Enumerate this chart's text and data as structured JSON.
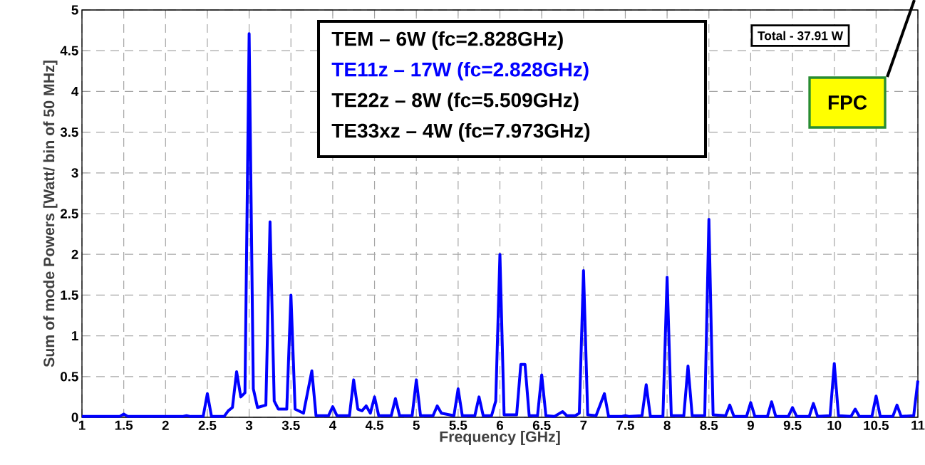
{
  "chart_data": {
    "type": "line",
    "xlabel": "Frequency [GHz]",
    "ylabel": "Sum of mode Powers [Watt/ bin of 50 MHz]",
    "x": [
      1,
      1.45,
      1.5,
      1.55,
      1.75,
      2.0,
      2.2,
      2.25,
      2.3,
      2.45,
      2.5,
      2.55,
      2.7,
      2.75,
      2.8,
      2.85,
      2.9,
      2.95,
      3.0,
      3.05,
      3.1,
      3.2,
      3.25,
      3.3,
      3.35,
      3.45,
      3.5,
      3.55,
      3.65,
      3.75,
      3.8,
      3.95,
      4.0,
      4.05,
      4.2,
      4.25,
      4.3,
      4.35,
      4.4,
      4.45,
      4.5,
      4.55,
      4.7,
      4.75,
      4.8,
      4.95,
      5.0,
      5.05,
      5.2,
      5.25,
      5.3,
      5.45,
      5.5,
      5.55,
      5.7,
      5.75,
      5.8,
      5.9,
      5.95,
      6.0,
      6.05,
      6.2,
      6.25,
      6.3,
      6.35,
      6.45,
      6.5,
      6.55,
      6.65,
      6.75,
      6.8,
      6.9,
      6.95,
      7.0,
      7.05,
      7.15,
      7.25,
      7.3,
      7.45,
      7.5,
      7.55,
      7.7,
      7.75,
      7.8,
      7.95,
      8.0,
      8.05,
      8.2,
      8.25,
      8.3,
      8.45,
      8.5,
      8.55,
      8.7,
      8.75,
      8.8,
      8.95,
      9.0,
      9.05,
      9.2,
      9.25,
      9.3,
      9.45,
      9.5,
      9.55,
      9.7,
      9.75,
      9.8,
      9.95,
      10.0,
      10.05,
      10.2,
      10.25,
      10.3,
      10.45,
      10.5,
      10.55,
      10.7,
      10.75,
      10.8,
      10.95,
      11.0
    ],
    "series": [
      {
        "name": "TE11z – 17W (fc=2.828GHz)",
        "color": "#0000ff",
        "values": [
          0.01,
          0.01,
          0.04,
          0.01,
          0.01,
          0.01,
          0.01,
          0.02,
          0.01,
          0.01,
          0.29,
          0.01,
          0.01,
          0.08,
          0.12,
          0.56,
          0.25,
          0.3,
          4.71,
          0.35,
          0.12,
          0.15,
          2.4,
          0.2,
          0.1,
          0.1,
          1.5,
          0.1,
          0.05,
          0.57,
          0.02,
          0.02,
          0.13,
          0.02,
          0.02,
          0.46,
          0.1,
          0.08,
          0.14,
          0.05,
          0.25,
          0.02,
          0.02,
          0.23,
          0.02,
          0.02,
          0.46,
          0.02,
          0.02,
          0.14,
          0.05,
          0.02,
          0.35,
          0.02,
          0.02,
          0.25,
          0.02,
          0.02,
          0.2,
          2.0,
          0.03,
          0.03,
          0.65,
          0.65,
          0.02,
          0.02,
          0.52,
          0.02,
          0.01,
          0.07,
          0.02,
          0.02,
          0.05,
          1.8,
          0.03,
          0.02,
          0.29,
          0.01,
          0.01,
          0.02,
          0.01,
          0.02,
          0.4,
          0.01,
          0.01,
          1.72,
          0.02,
          0.02,
          0.63,
          0.02,
          0.02,
          2.43,
          0.03,
          0.02,
          0.15,
          0.01,
          0.01,
          0.18,
          0.01,
          0.01,
          0.19,
          0.01,
          0.01,
          0.12,
          0.01,
          0.01,
          0.17,
          0.01,
          0.02,
          0.66,
          0.02,
          0.01,
          0.1,
          0.01,
          0.01,
          0.26,
          0.01,
          0.01,
          0.15,
          0.01,
          0.02,
          0.45
        ]
      }
    ],
    "xlim": [
      1,
      11
    ],
    "ylim": [
      0,
      5
    ],
    "xticks": [
      1,
      1.5,
      2,
      2.5,
      3,
      3.5,
      4,
      4.5,
      5,
      5.5,
      6,
      6.5,
      7,
      7.5,
      8,
      8.5,
      9,
      9.5,
      10,
      10.5,
      11
    ],
    "yticks": [
      0,
      0.5,
      1,
      1.5,
      2,
      2.5,
      3,
      3.5,
      4,
      4.5,
      5
    ],
    "grid": true,
    "line_style": "solid",
    "legend": "top",
    "annotations": [
      "TEM – 6W (fc=2.828GHz)",
      "TE22z – 8W (fc=5.509GHz)",
      "TE33xz – 4W (fc=7.973GHz)",
      "Total - 37.91 W",
      "FPC"
    ]
  }
}
